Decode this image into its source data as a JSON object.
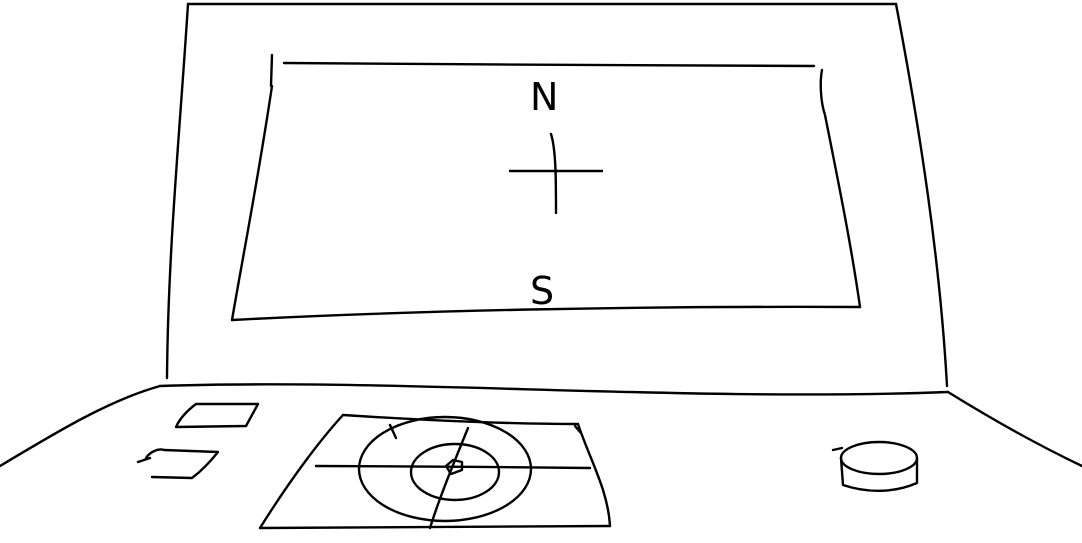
{
  "screen": {
    "north_label": "N",
    "south_label": "S"
  },
  "icons": {
    "crosshair": "crosshair-icon",
    "touchpad_target": "target-icon",
    "round_button": "round-button-icon"
  },
  "colors": {
    "ink": "#000000",
    "background": "#ffffff"
  }
}
